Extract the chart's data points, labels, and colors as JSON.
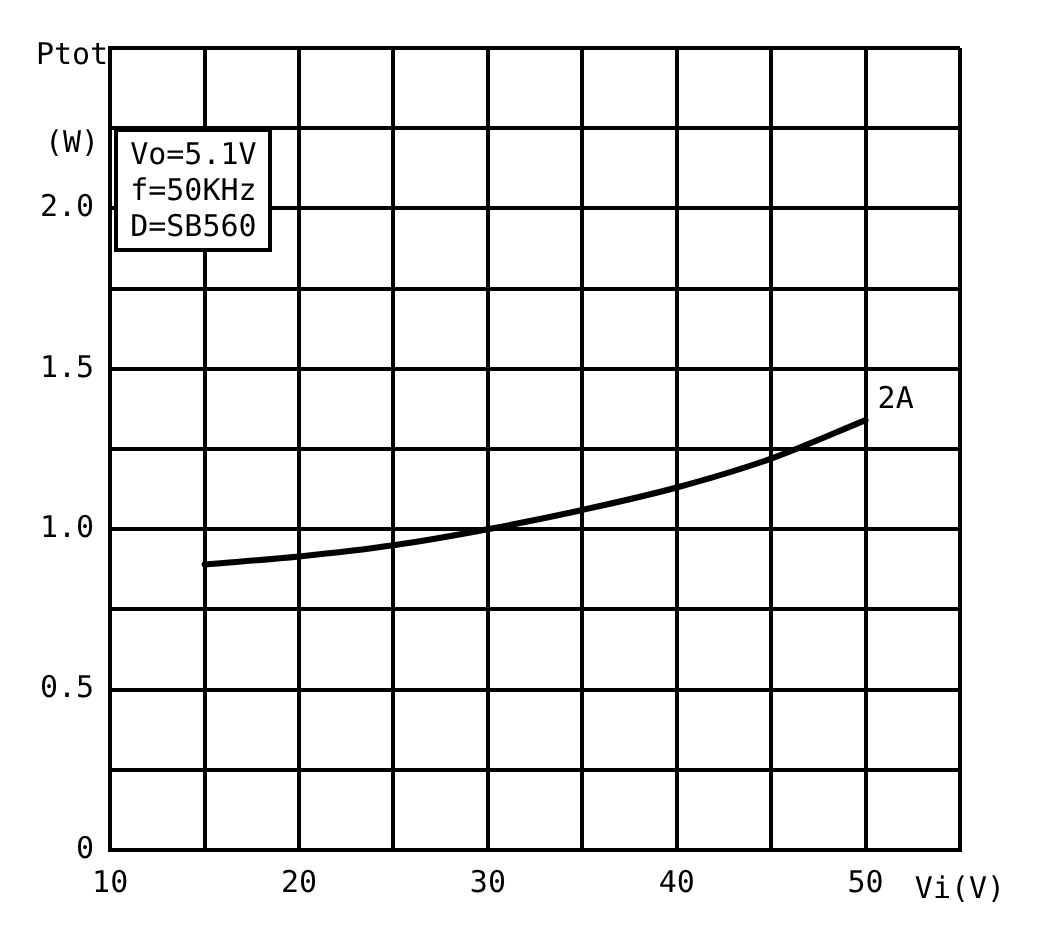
{
  "chart_data": {
    "type": "line",
    "xlabel": "Vi(V)",
    "ylabel": "Ptot (W)",
    "annotations": [
      "Vo=5.1V",
      "f=50KHz",
      "D=SB560"
    ],
    "x": [
      15,
      20,
      25,
      30,
      35,
      40,
      45,
      50
    ],
    "series": [
      {
        "name": "2A",
        "color": "#000000",
        "values": [
          0.89,
          0.915,
          0.95,
          1.0,
          1.06,
          1.13,
          1.22,
          1.34
        ]
      }
    ],
    "xlim": [
      10,
      55
    ],
    "xticks": [
      10,
      {
        "value": 15,
        "label": null
      },
      20,
      {
        "value": 25,
        "label": null
      },
      30,
      {
        "value": 35,
        "label": null
      },
      40,
      {
        "value": 45,
        "label": null
      },
      50,
      {
        "value": 55,
        "label": null
      }
    ],
    "ylim": [
      0,
      2.5
    ],
    "yticks": [
      {
        "value": 0,
        "label": "0"
      },
      {
        "value": 0.25,
        "label": null
      },
      {
        "value": 0.5,
        "label": "0.5"
      },
      {
        "value": 0.75,
        "label": null
      },
      {
        "value": 1,
        "label": "1.0"
      },
      {
        "value": 1.25,
        "label": null
      },
      {
        "value": 1.5,
        "label": "1.5"
      },
      {
        "value": 1.75,
        "label": null
      },
      {
        "value": 2,
        "label": "2.0"
      },
      {
        "value": 2.25,
        "label": null
      },
      {
        "value": 2.5,
        "label": null
      }
    ],
    "grid": true,
    "legend": false,
    "marker": "none",
    "line_style": "solid"
  }
}
